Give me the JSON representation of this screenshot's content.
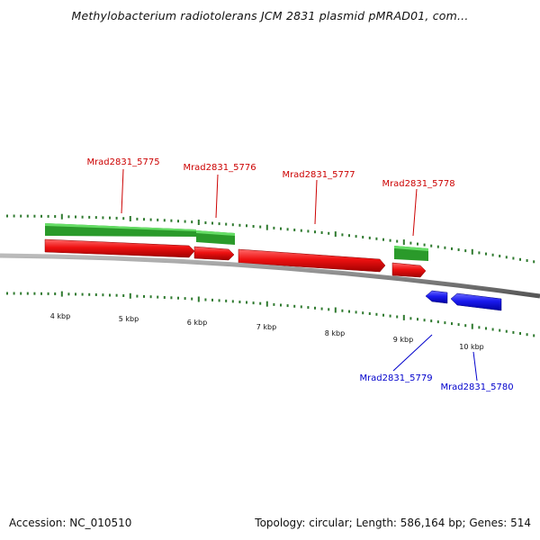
{
  "title": "Methylobacterium radiotolerans JCM 2831 plasmid pMRAD01, com...",
  "footer": {
    "accession": "Accession: NC_010510",
    "summary": "Topology: circular; Length: 586,164 bp; Genes: 514"
  },
  "colors": {
    "forward_gene": "#ee1111",
    "reverse_gene": "#1a1aee",
    "cds_band": "#33bb33",
    "backbone": "#888888",
    "tick": "#2f7a2f",
    "forward_label": "#cc0000",
    "reverse_label": "#0000cc"
  },
  "scale_labels": [
    "4 kbp",
    "5 kbp",
    "6 kbp",
    "7 kbp",
    "8 kbp",
    "9 kbp",
    "10 kbp"
  ],
  "gene_labels": [
    {
      "id": "Mrad2831_5775",
      "strand": "forward"
    },
    {
      "id": "Mrad2831_5776",
      "strand": "forward"
    },
    {
      "id": "Mrad2831_5777",
      "strand": "forward"
    },
    {
      "id": "Mrad2831_5778",
      "strand": "forward"
    },
    {
      "id": "Mrad2831_5779",
      "strand": "reverse"
    },
    {
      "id": "Mrad2831_5780",
      "strand": "reverse"
    }
  ]
}
